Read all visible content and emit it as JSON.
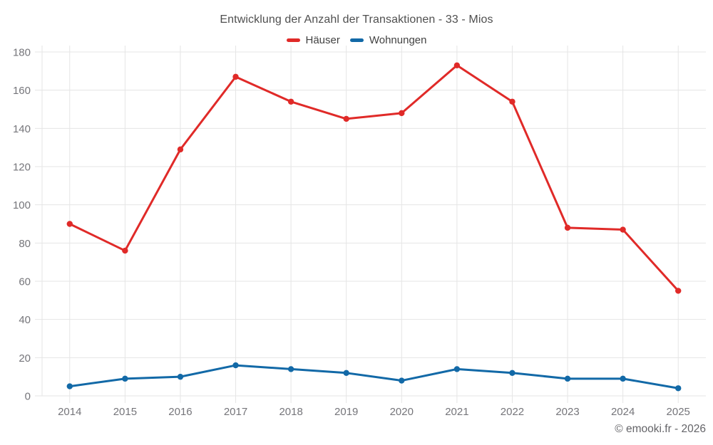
{
  "chart_data": {
    "type": "line",
    "title": "Entwicklung der Anzahl der Transaktionen - 33 - Mios",
    "categories": [
      "2014",
      "2015",
      "2016",
      "2017",
      "2018",
      "2019",
      "2020",
      "2021",
      "2022",
      "2023",
      "2024",
      "2025"
    ],
    "series": [
      {
        "name": "Häuser",
        "color": "#e02a28",
        "values": [
          90,
          76,
          129,
          167,
          154,
          145,
          148,
          173,
          154,
          88,
          87,
          55
        ]
      },
      {
        "name": "Wohnungen",
        "color": "#1269a7",
        "values": [
          5,
          9,
          10,
          16,
          14,
          12,
          8,
          14,
          12,
          9,
          9,
          4
        ]
      }
    ],
    "xlabel": "",
    "ylabel": "",
    "ylim": [
      0,
      180
    ],
    "ytick_step": 20,
    "grid": true,
    "legend_position": "top"
  },
  "footer": {
    "copyright": "© emooki.fr - 2026"
  },
  "theme": {
    "background": "#ffffff",
    "grid_color": "#e5e5e5",
    "axis_label_color": "#75757a",
    "title_color": "#4f4f4f",
    "legend_label_color": "#424242",
    "copyright_color": "#646468"
  }
}
